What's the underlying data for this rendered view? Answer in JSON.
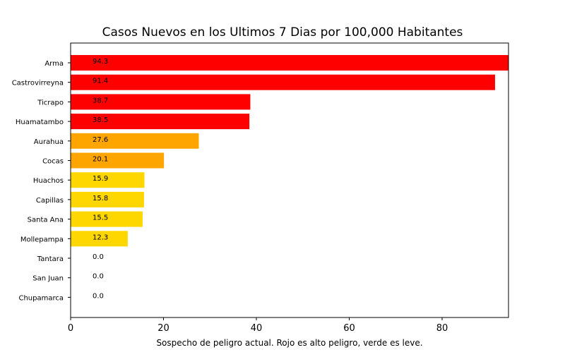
{
  "chart_data": {
    "type": "bar",
    "orientation": "horizontal",
    "title": "Casos Nuevos en los Ultimos 7 Dias por 100,000 Habitantes",
    "xlabel": "Sospecho de peligro actual. Rojo es alto peligro, verde es leve.",
    "ylabel": "",
    "xlim": [
      0,
      94.3
    ],
    "xticks": [
      "0",
      "20",
      "40",
      "60",
      "80"
    ],
    "categories": [
      "Arma",
      "Castrovirreyna",
      "Ticrapo",
      "Huamatambo",
      "Aurahua",
      "Cocas",
      "Huachos",
      "Capillas",
      "Santa Ana",
      "Mollepampa",
      "Tantara",
      "San Juan",
      "Chupamarca"
    ],
    "values": [
      94.3,
      91.4,
      38.7,
      38.5,
      27.6,
      20.1,
      15.9,
      15.8,
      15.5,
      12.3,
      0.0,
      0.0,
      0.0
    ],
    "labels": [
      "94.3",
      "91.4",
      "38.7",
      "38.5",
      "27.6",
      "20.1",
      "15.9",
      "15.8",
      "15.5",
      "12.3",
      "0.0",
      "0.0",
      "0.0"
    ],
    "colors": [
      "#ff0000",
      "#ff0000",
      "#ff0000",
      "#ff0000",
      "#ffa500",
      "#ffa500",
      "#ffd700",
      "#ffd700",
      "#ffd700",
      "#ffd700",
      "#ffd700",
      "#ffd700",
      "#ffd700"
    ],
    "grid": false,
    "legend": "none"
  }
}
